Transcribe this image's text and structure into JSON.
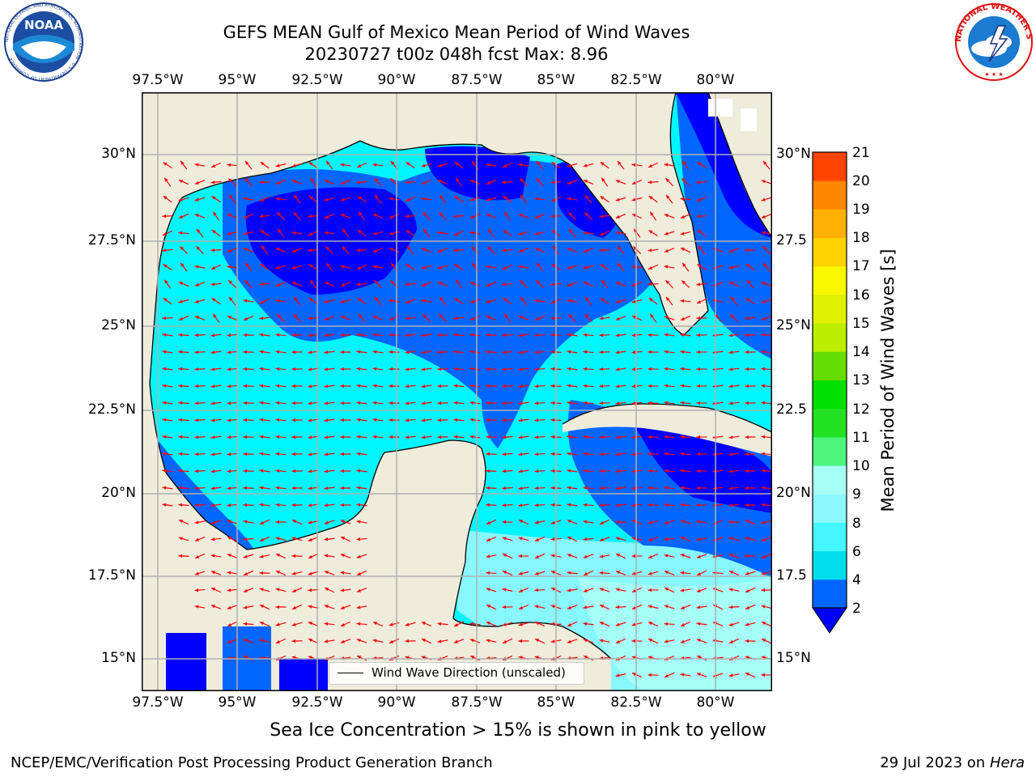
{
  "title": {
    "line1": "GEFS MEAN Gulf of Mexico Mean Period of Wind Waves",
    "line2": "20230727 t00z 048h fcst   Max: 8.96"
  },
  "axes": {
    "lon_ticks": [
      "97.5°W",
      "95°W",
      "92.5°W",
      "90°W",
      "87.5°W",
      "85°W",
      "82.5°W",
      "80°W"
    ],
    "lat_ticks_left": [
      "30°N",
      "27.5°N",
      "25°N",
      "22.5°N",
      "20°N",
      "17.5°N",
      "15°N"
    ],
    "lat_ticks_right": [
      "30°N",
      "27.5",
      "25°N",
      "22.5",
      "20°N",
      "17.5",
      "15°N"
    ]
  },
  "legend": {
    "label": "Wind Wave Direction (unscaled)"
  },
  "colorbar": {
    "label": "Mean Period of Wind Waves [s]",
    "ticks": [
      "2",
      "4",
      "6",
      "8",
      "9",
      "10",
      "11",
      "12",
      "13",
      "14",
      "15",
      "16",
      "17",
      "18",
      "19",
      "20",
      "21"
    ],
    "colors": [
      "#0066ff",
      "#00ddee",
      "#44f6ff",
      "#8cf8ff",
      "#a6fff6",
      "#4df57f",
      "#22e122",
      "#00e000",
      "#66dd00",
      "#bbee00",
      "#e0f000",
      "#f8f800",
      "#ffd200",
      "#ffb000",
      "#ff8800",
      "#ff4400",
      "#ff1a00",
      "#ff0000"
    ],
    "extend_color": "#0000ff"
  },
  "notes": {
    "sea_ice": "Sea Ice Concentration > 15% is shown in pink to yellow"
  },
  "footer": {
    "left": "NCEP/EMC/Verification Post Processing Product Generation Branch",
    "date": "29 Jul 2023 on ",
    "host": "Hera"
  },
  "logos": {
    "left": "NOAA",
    "left_ring": "NATIONAL OCEANIC AND ATMOSPHERIC ADMINISTRATION · U.S. DEPARTMENT OF COMMERCE",
    "right_ring": "NATIONAL WEATHER SERVICE"
  },
  "map_colors": {
    "land": "#efecdc",
    "ocean_low": "#0000ff",
    "band_2_4": "#0066ff",
    "band_4_6": "#00f6ff",
    "band_6_8": "#88f8ff",
    "arrow": "#ff0000",
    "grid": "#b0b0b0"
  }
}
